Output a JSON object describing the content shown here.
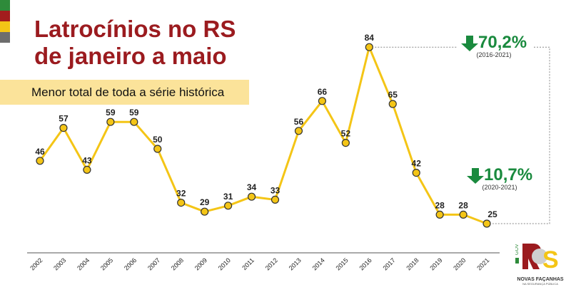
{
  "header": {
    "title_line1": "Latrocínios no RS",
    "title_line2": "de janeiro a maio",
    "subtitle": "Menor total de toda a série histórica"
  },
  "colors": {
    "title": "#9b1b1f",
    "line": "#f4c516",
    "marker": "#f4c516",
    "annotation": "#1a8a3e",
    "flag": [
      "#2e8b3a",
      "#a31d1d",
      "#f4c516",
      "#6d6d6d"
    ]
  },
  "chart_data": {
    "type": "line",
    "title": "Latrocínios no RS de janeiro a maio",
    "subtitle": "Menor total de toda a série histórica",
    "xlabel": "",
    "ylabel": "",
    "grid": false,
    "categories": [
      "2002",
      "2003",
      "2004",
      "2005",
      "2006",
      "2007",
      "2008",
      "2009",
      "2010",
      "2011",
      "2012",
      "2013",
      "2014",
      "2015",
      "2016",
      "2017",
      "2018",
      "2019",
      "2020",
      "2021"
    ],
    "series": [
      {
        "name": "Latrocínios",
        "values": [
          46,
          57,
          43,
          59,
          59,
          50,
          32,
          29,
          31,
          34,
          33,
          56,
          66,
          52,
          84,
          65,
          42,
          28,
          28,
          25
        ]
      }
    ],
    "annotations": [
      {
        "text": "70,2%",
        "period": "(2016-2021)",
        "direction": "down"
      },
      {
        "text": "10,7%",
        "period": "(2020-2021)",
        "direction": "down"
      }
    ]
  },
  "logo": {
    "text": "RS",
    "gov": "GOV",
    "line1": "NOVAS FAÇANHAS",
    "line2": "NA SEGURANÇA PÚBLICA"
  }
}
